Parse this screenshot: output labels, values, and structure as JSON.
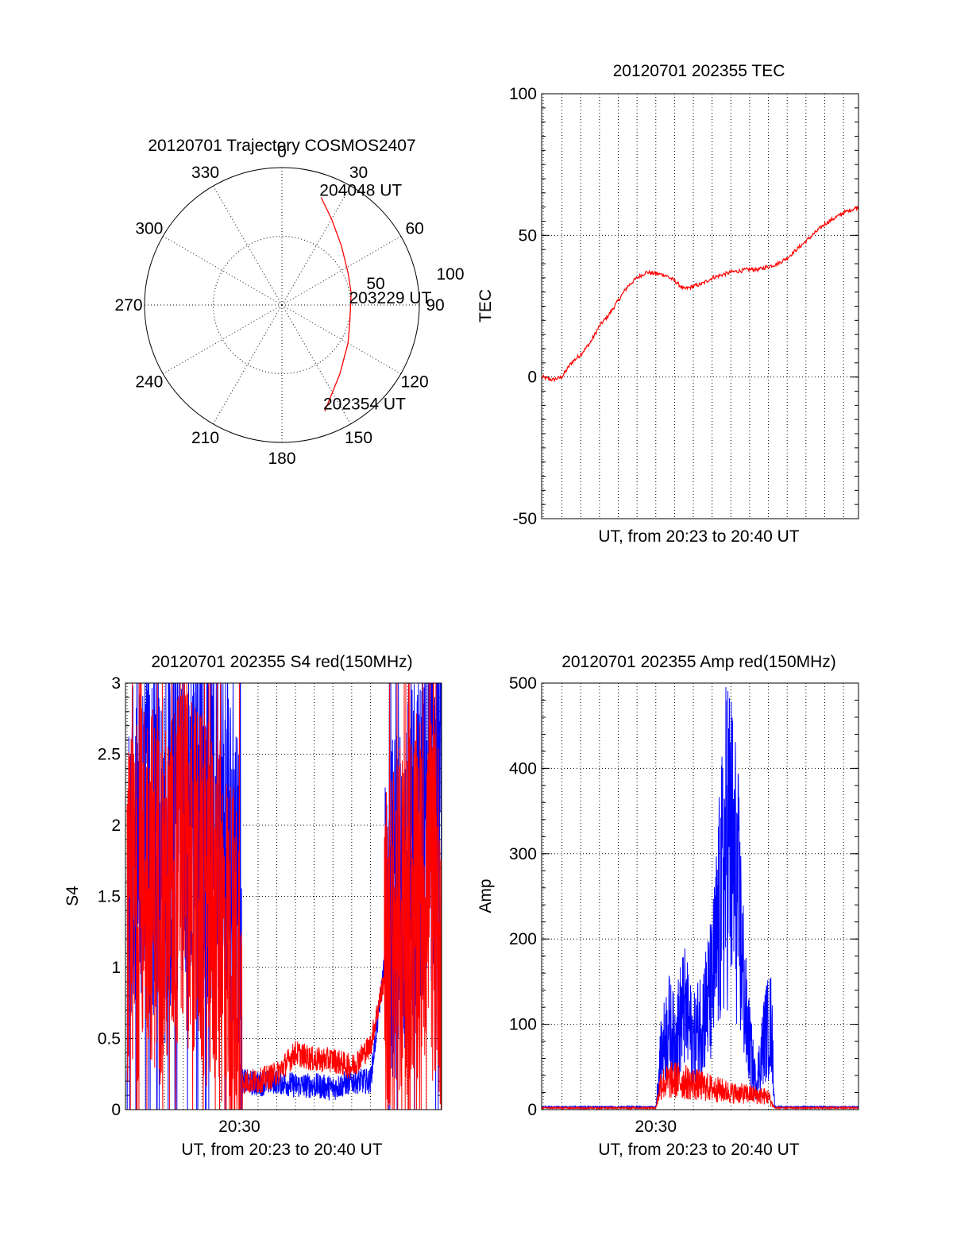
{
  "chart_data": [
    {
      "type": "polar",
      "title": "20120701 Trajectory COSMOS2407",
      "angle_labels": [
        "0",
        "30",
        "60",
        "90",
        "120",
        "150",
        "180",
        "210",
        "240",
        "270",
        "300",
        "330"
      ],
      "radial_tick_labels": [
        "50",
        "100"
      ],
      "trajectory": {
        "color": "#ff0000",
        "points": [
          {
            "az": 20,
            "el": 15
          },
          {
            "az": 30,
            "el": 25
          },
          {
            "az": 45,
            "el": 35
          },
          {
            "az": 65,
            "el": 42
          },
          {
            "az": 80,
            "el": 44
          },
          {
            "az": 90,
            "el": 45
          },
          {
            "az": 105,
            "el": 44
          },
          {
            "az": 120,
            "el": 40
          },
          {
            "az": 140,
            "el": 31
          },
          {
            "az": 158,
            "el": 15
          }
        ],
        "labels": [
          {
            "text": "204048 UT",
            "az": 20,
            "el": 15
          },
          {
            "text": "203229 UT",
            "az": 90,
            "el": 45
          },
          {
            "text": "202354 UT",
            "az": 158,
            "el": 15
          }
        ]
      }
    },
    {
      "type": "line",
      "title": "20120701 202355 TEC",
      "xlabel": "UT, from 20:23 to 20:40 UT",
      "ylabel": "TEC",
      "xlim": [
        "20:23:55",
        "20:40:48"
      ],
      "ylim": [
        -50,
        100
      ],
      "yticks": [
        "100",
        "50",
        "0",
        "-50"
      ],
      "grid": true,
      "series": [
        {
          "color": "#ff0000",
          "x": [
            "20:23:55",
            "20:24:30",
            "20:25:00",
            "20:25:30",
            "20:26:00",
            "20:26:30",
            "20:27:00",
            "20:27:30",
            "20:28:00",
            "20:28:30",
            "20:29:00",
            "20:29:30",
            "20:30:30",
            "20:31:00",
            "20:31:30",
            "20:32:00",
            "20:32:30",
            "20:33:00",
            "20:33:30",
            "20:34:00",
            "20:34:30",
            "20:35:00",
            "20:35:30",
            "20:36:00",
            "20:36:30",
            "20:37:00",
            "20:37:30",
            "20:38:00",
            "20:38:30",
            "20:39:00",
            "20:39:30",
            "20:40:00",
            "20:40:48"
          ],
          "values": [
            0,
            -1,
            0,
            5,
            8,
            12,
            18,
            22,
            27,
            32,
            35,
            37,
            36,
            34,
            31,
            32,
            33,
            35,
            36,
            37,
            37.5,
            38,
            38,
            39,
            40,
            42,
            45,
            48,
            51,
            54,
            56,
            58,
            60
          ]
        }
      ]
    },
    {
      "type": "line",
      "title": "20120701 202355 S4 red(150MHz)",
      "xlabel": "UT, from 20:23 to 20:40 UT",
      "ylabel": "S4",
      "xlim": [
        "20:23:55",
        "20:40:48"
      ],
      "ylim": [
        0,
        3
      ],
      "yticks": [
        "3",
        "2.5",
        "2",
        "1.5",
        "1",
        "0.5",
        "0"
      ],
      "xticks": [
        {
          "value": "20:30",
          "label": "20:30"
        }
      ],
      "grid": true,
      "series": [
        {
          "color": "#0000ff",
          "x": [
            "20:24:00",
            "20:25:00",
            "20:26:00",
            "20:27:00",
            "20:28:00",
            "20:29:00",
            "20:30:00",
            "20:30:10",
            "20:31:00",
            "20:32:00",
            "20:33:00",
            "20:34:00",
            "20:35:00",
            "20:36:00",
            "20:37:00",
            "20:38:00",
            "20:39:00",
            "20:40:00",
            "20:40:48"
          ],
          "values": [
            1.5,
            2.1,
            1.7,
            2.3,
            2.0,
            2.0,
            1.6,
            0.2,
            0.18,
            0.2,
            0.17,
            0.17,
            0.15,
            0.2,
            0.2,
            1.3,
            1.6,
            2.1,
            2.3
          ]
        },
        {
          "color": "#ff0000",
          "x": [
            "20:24:00",
            "20:25:00",
            "20:26:00",
            "20:27:00",
            "20:28:00",
            "20:29:00",
            "20:30:00",
            "20:30:10",
            "20:31:00",
            "20:32:00",
            "20:33:00",
            "20:34:00",
            "20:35:00",
            "20:36:00",
            "20:37:00",
            "20:38:00",
            "20:39:00",
            "20:40:00",
            "20:40:48"
          ],
          "values": [
            1.2,
            1.7,
            1.4,
            1.8,
            1.5,
            1.3,
            0.9,
            0.2,
            0.2,
            0.25,
            0.4,
            0.35,
            0.35,
            0.3,
            0.45,
            1.1,
            1.4,
            1.6,
            1.3
          ]
        }
      ]
    },
    {
      "type": "line",
      "title": "20120701 202355 Amp red(150MHz)",
      "xlabel": "UT, from 20:23 to 20:40 UT",
      "ylabel": "Amp",
      "xlim": [
        "20:23:55",
        "20:40:48"
      ],
      "ylim": [
        0,
        500
      ],
      "yticks": [
        "500",
        "400",
        "300",
        "200",
        "100",
        "0"
      ],
      "xticks": [
        {
          "value": "20:30",
          "label": "20:30"
        }
      ],
      "grid": true,
      "series": [
        {
          "color": "#0000ff",
          "x": [
            "20:23:55",
            "20:29:00",
            "20:30:00",
            "20:30:15",
            "20:30:40",
            "20:31:00",
            "20:31:30",
            "20:32:00",
            "20:32:30",
            "20:33:00",
            "20:33:30",
            "20:33:50",
            "20:34:20",
            "20:34:50",
            "20:35:20",
            "20:35:50",
            "20:36:10",
            "20:36:20",
            "20:37:00",
            "20:40:48"
          ],
          "values": [
            2,
            2,
            2,
            60,
            100,
            80,
            120,
            80,
            110,
            140,
            250,
            330,
            260,
            100,
            30,
            90,
            100,
            2,
            2,
            2
          ]
        },
        {
          "color": "#ff0000",
          "x": [
            "20:23:55",
            "20:30:00",
            "20:30:15",
            "20:31:00",
            "20:32:00",
            "20:33:00",
            "20:34:00",
            "20:35:00",
            "20:36:00",
            "20:36:20",
            "20:40:48"
          ],
          "values": [
            1,
            1,
            30,
            35,
            30,
            25,
            20,
            18,
            15,
            1,
            1
          ]
        }
      ]
    }
  ]
}
